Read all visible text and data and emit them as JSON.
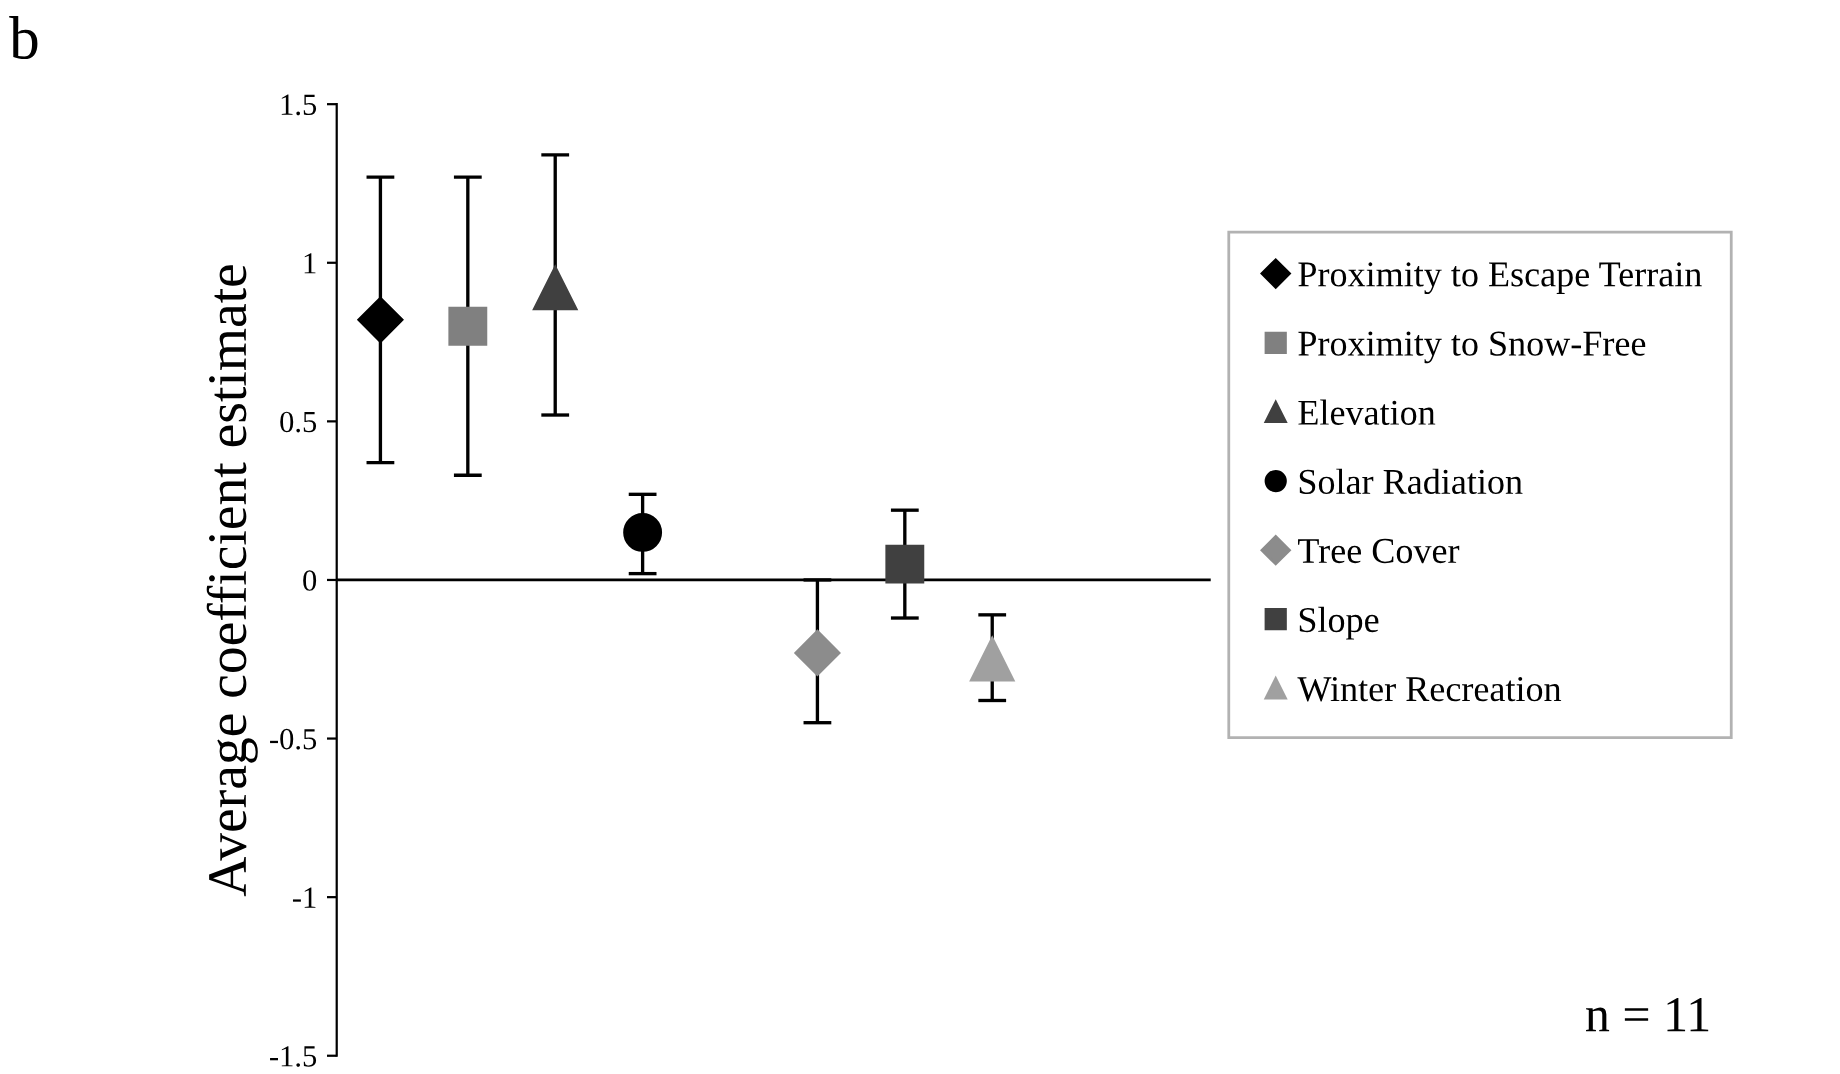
{
  "chart_data": {
    "type": "scatter",
    "title": "b",
    "ylabel": "Average coefficient estimate",
    "categories": [
      null,
      null,
      null,
      null,
      null,
      null,
      null,
      null,
      null,
      null
    ],
    "series": [
      {
        "name": "Proximity to Escape Terrain",
        "color": "#000000",
        "marker": "diamond",
        "values": [
          0.82,
          null,
          null,
          null,
          null,
          null,
          null,
          null,
          null,
          null
        ],
        "errors": [
          [
            0.37,
            1.27
          ],
          null,
          null,
          null,
          null,
          null,
          null,
          null,
          null,
          null
        ]
      },
      {
        "name": "Proximity to Snow-Free",
        "color": "#808080",
        "marker": "square",
        "values": [
          null,
          0.8,
          null,
          null,
          null,
          null,
          null,
          null,
          null,
          null
        ],
        "errors": [
          null,
          [
            0.33,
            1.27
          ],
          null,
          null,
          null,
          null,
          null,
          null,
          null,
          null
        ]
      },
      {
        "name": "Elevation",
        "color": "#404040",
        "marker": "triangle",
        "values": [
          null,
          null,
          0.92,
          null,
          null,
          null,
          null,
          null,
          null,
          null
        ],
        "errors": [
          null,
          null,
          [
            0.52,
            1.34
          ],
          null,
          null,
          null,
          null,
          null,
          null,
          null
        ]
      },
      {
        "name": "Solar Radiation",
        "color": "#000000",
        "marker": "circle",
        "values": [
          null,
          null,
          null,
          0.15,
          null,
          null,
          null,
          null,
          null,
          null
        ],
        "errors": [
          null,
          null,
          null,
          [
            0.02,
            0.27
          ],
          null,
          null,
          null,
          null,
          null,
          null
        ]
      },
      {
        "name": "Tree Cover",
        "color": "#8c8c8c",
        "marker": "diamond",
        "values": [
          null,
          null,
          null,
          null,
          null,
          -0.23,
          null,
          null,
          null,
          null
        ],
        "errors": [
          null,
          null,
          null,
          null,
          null,
          [
            -0.45,
            0.0
          ],
          null,
          null,
          null,
          null
        ]
      },
      {
        "name": "Slope",
        "color": "#404040",
        "marker": "square",
        "values": [
          null,
          null,
          null,
          null,
          null,
          null,
          0.05,
          null,
          null,
          null
        ],
        "errors": [
          null,
          null,
          null,
          null,
          null,
          null,
          [
            -0.12,
            0.22
          ],
          null,
          null,
          null
        ]
      },
      {
        "name": "Winter Recreation",
        "color": "#a0a0a0",
        "marker": "triangle",
        "values": [
          null,
          null,
          null,
          null,
          null,
          null,
          null,
          -0.25,
          null,
          null
        ],
        "errors": [
          null,
          null,
          null,
          null,
          null,
          null,
          null,
          [
            -0.38,
            -0.11
          ],
          null,
          null
        ]
      }
    ],
    "ylim": [
      -1.5,
      1.5
    ],
    "yticks": [
      -1.5,
      -1,
      -0.5,
      0,
      0.5,
      1,
      1.5
    ],
    "tick_labels": "y",
    "ref_lines": [
      {
        "axis": "y",
        "value": 0
      }
    ],
    "legend": "right",
    "annotations": [
      "n = 11"
    ]
  }
}
